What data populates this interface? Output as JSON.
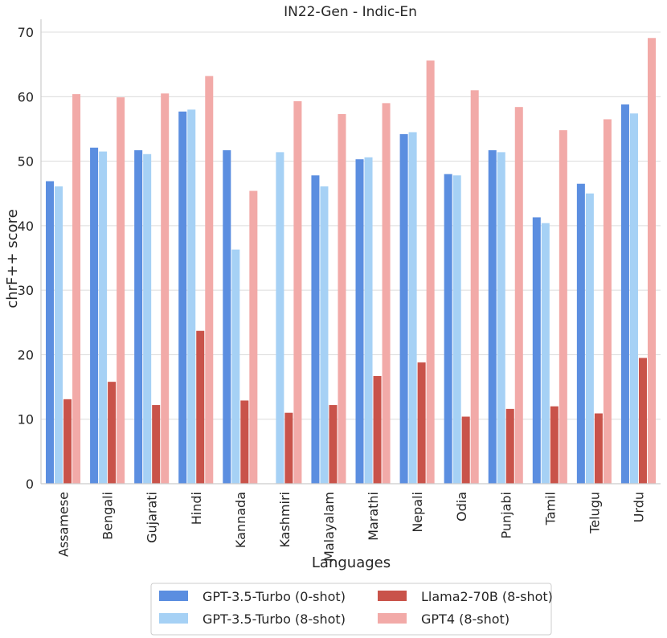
{
  "chart_data": {
    "type": "bar",
    "title": "IN22-Gen - Indic-En",
    "xlabel": "Languages",
    "ylabel": "chrF++ score",
    "ylim": [
      0,
      72
    ],
    "yticks": [
      "0",
      "10",
      "20",
      "30",
      "40",
      "50",
      "60",
      "70"
    ],
    "grid": true,
    "legend_position": "bottom",
    "categories": [
      "Assamese",
      "Bengali",
      "Gujarati",
      "Hindi",
      "Kannada",
      "Kashmiri",
      "Malayalam",
      "Marathi",
      "Nepali",
      "Odia",
      "Punjabi",
      "Tamil",
      "Telugu",
      "Urdu"
    ],
    "series": [
      {
        "name": "GPT-3.5-Turbo (0-shot)",
        "color": "#5b8ee0",
        "values": [
          46.9,
          52.1,
          51.7,
          57.7,
          51.7,
          null,
          47.8,
          50.3,
          54.2,
          48.0,
          51.7,
          41.3,
          46.5,
          58.8
        ]
      },
      {
        "name": "GPT-3.5-Turbo (8-shot)",
        "color": "#a6d1f5",
        "values": [
          46.1,
          51.5,
          51.1,
          58.0,
          36.3,
          51.4,
          46.1,
          50.6,
          54.5,
          47.8,
          51.4,
          40.4,
          45.0,
          57.4
        ]
      },
      {
        "name": "Llama2-70B (8-shot)",
        "color": "#c9534a",
        "values": [
          13.1,
          15.8,
          12.2,
          23.7,
          12.9,
          11.0,
          12.2,
          16.7,
          18.8,
          10.4,
          11.6,
          12.0,
          10.9,
          19.5
        ]
      },
      {
        "name": "GPT4 (8-shot)",
        "color": "#f2aaa8",
        "values": [
          60.4,
          59.9,
          60.5,
          63.2,
          45.4,
          59.3,
          57.3,
          59.0,
          65.6,
          61.0,
          58.4,
          54.8,
          56.5,
          69.1
        ]
      }
    ]
  }
}
